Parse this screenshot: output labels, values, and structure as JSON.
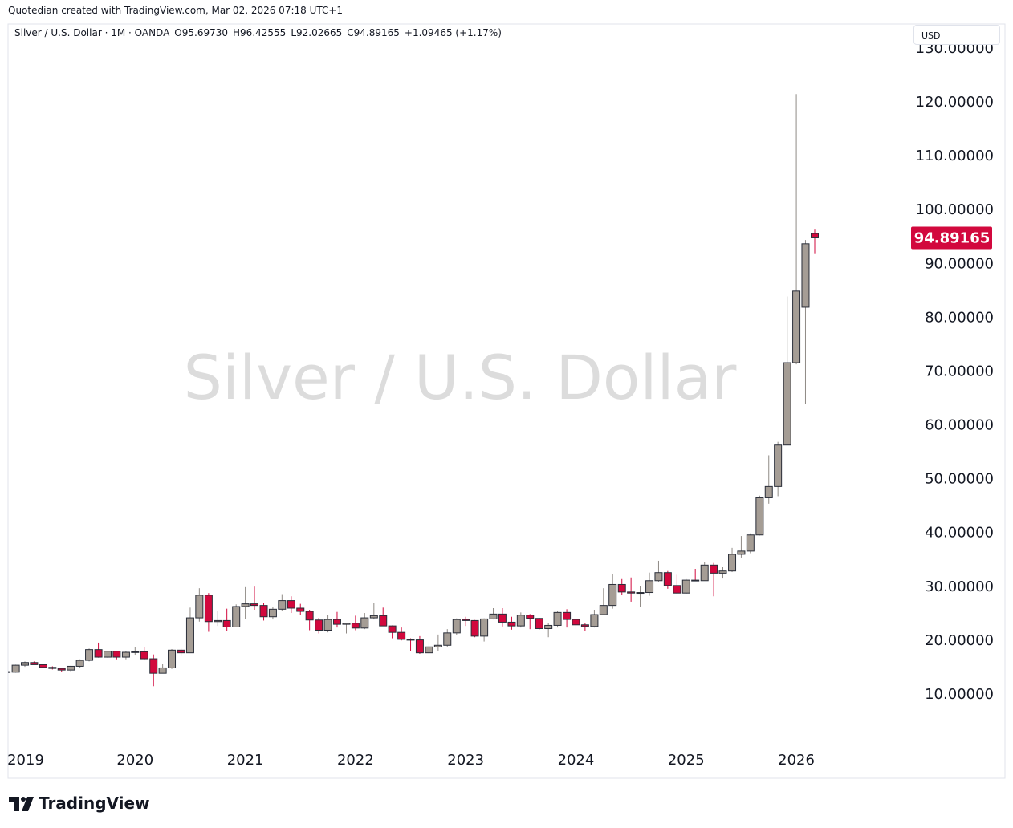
{
  "chart_data": {
    "type": "candlestick",
    "credit": "Quotedian created with TradingView.com, Mar 02, 2026 07:18 UTC+1",
    "legend_title": "Silver / U.S. Dollar · 1M · OANDA",
    "legend": [
      {
        "key": "O",
        "text": "95.69730"
      },
      {
        "key": "H",
        "text": "96.42555"
      },
      {
        "key": "L",
        "text": "92.02665"
      },
      {
        "key": "C",
        "text": "94.89165"
      }
    ],
    "change": "+1.09465 (+1.17%)",
    "watermark": "Silver / U.S. Dollar",
    "currency": "USD",
    "brand": "TradingView",
    "x": [
      2018.833,
      2018.917,
      2019.0,
      2019.083,
      2019.167,
      2019.25,
      2019.333,
      2019.417,
      2019.5,
      2019.583,
      2019.667,
      2019.75,
      2019.833,
      2019.917,
      2020.0,
      2020.083,
      2020.167,
      2020.25,
      2020.333,
      2020.417,
      2020.5,
      2020.583,
      2020.667,
      2020.75,
      2020.833,
      2020.917,
      2021.0,
      2021.083,
      2021.167,
      2021.25,
      2021.333,
      2021.417,
      2021.5,
      2021.583,
      2021.667,
      2021.75,
      2021.833,
      2021.917,
      2022.0,
      2022.083,
      2022.167,
      2022.25,
      2022.333,
      2022.417,
      2022.5,
      2022.583,
      2022.667,
      2022.75,
      2022.833,
      2022.917,
      2023.0,
      2023.083,
      2023.167,
      2023.25,
      2023.333,
      2023.417,
      2023.5,
      2023.583,
      2023.667,
      2023.75,
      2023.833,
      2023.917,
      2024.0,
      2024.083,
      2024.167,
      2024.25,
      2024.333,
      2024.417,
      2024.5,
      2024.583,
      2024.667,
      2024.75,
      2024.833,
      2024.917,
      2025.0,
      2025.083,
      2025.167,
      2025.25,
      2025.333,
      2025.417,
      2025.5,
      2025.583,
      2025.667,
      2025.75,
      2025.833,
      2025.917,
      2026.0,
      2026.083,
      2026.167
    ],
    "open": [
      14.3,
      14.2,
      15.5,
      16.0,
      15.6,
      15.1,
      14.9,
      14.6,
      15.3,
      16.4,
      18.4,
      17.0,
      18.1,
      17.0,
      17.9,
      18.0,
      16.7,
      14.0,
      15.0,
      18.3,
      17.8,
      24.3,
      28.5,
      23.6,
      23.8,
      22.6,
      26.4,
      26.9,
      26.6,
      24.5,
      25.9,
      27.5,
      26.1,
      25.5,
      23.9,
      22.0,
      24.0,
      23.1,
      23.3,
      22.4,
      24.3,
      24.7,
      22.8,
      21.6,
      20.3,
      20.2,
      17.8,
      18.9,
      19.2,
      21.5,
      24.0,
      23.8,
      20.9,
      24.1,
      25.0,
      23.5,
      22.8,
      24.8,
      24.2,
      22.3,
      22.9,
      25.3,
      24.0,
      23.0,
      22.7,
      24.9,
      26.6,
      30.5,
      29.1,
      28.9,
      29.0,
      31.2,
      32.7,
      30.3,
      28.9,
      31.3,
      31.2,
      34.1,
      32.6,
      33.0,
      36.1,
      36.7,
      39.7,
      46.6,
      48.7,
      56.4,
      71.7,
      82.0,
      95.6973
    ],
    "high": [
      14.6,
      15.6,
      16.2,
      16.2,
      15.6,
      15.3,
      15.0,
      15.4,
      16.6,
      18.6,
      19.7,
      18.2,
      18.2,
      18.1,
      18.9,
      18.9,
      17.5,
      15.7,
      18.5,
      18.6,
      26.2,
      29.8,
      28.9,
      25.5,
      26.0,
      26.8,
      30.0,
      30.1,
      27.0,
      26.4,
      28.7,
      28.3,
      26.9,
      25.8,
      24.3,
      24.8,
      25.4,
      23.4,
      24.7,
      25.2,
      27.0,
      26.2,
      22.9,
      22.5,
      20.5,
      20.9,
      19.8,
      21.2,
      22.2,
      24.2,
      24.5,
      23.9,
      24.2,
      26.1,
      26.1,
      24.5,
      25.3,
      25.0,
      24.3,
      23.3,
      25.5,
      25.9,
      24.0,
      23.3,
      25.8,
      29.8,
      32.5,
      31.5,
      31.8,
      30.2,
      32.7,
      34.9,
      33.0,
      32.3,
      31.5,
      33.4,
      34.6,
      34.5,
      33.7,
      37.3,
      39.5,
      40.0,
      47.0,
      54.5,
      57.0,
      84.0,
      121.6,
      94.5,
      96.42555
    ],
    "low": [
      13.9,
      14.1,
      15.2,
      15.6,
      15.0,
      14.7,
      14.3,
      14.3,
      15.0,
      16.2,
      16.9,
      16.9,
      16.6,
      16.6,
      17.3,
      16.4,
      11.6,
      14.0,
      14.8,
      17.2,
      17.8,
      23.6,
      21.7,
      22.8,
      21.9,
      22.6,
      24.1,
      25.8,
      23.8,
      24.0,
      25.6,
      25.2,
      24.8,
      22.0,
      21.4,
      21.6,
      22.5,
      21.4,
      22.0,
      22.2,
      24.0,
      22.8,
      20.5,
      20.1,
      18.1,
      17.6,
      17.6,
      18.1,
      18.8,
      21.1,
      22.8,
      20.7,
      19.9,
      24.0,
      22.7,
      22.1,
      22.5,
      22.2,
      22.1,
      20.7,
      22.5,
      22.5,
      22.2,
      21.9,
      22.5,
      24.8,
      26.0,
      28.6,
      27.3,
      26.4,
      28.4,
      31.0,
      29.7,
      28.8,
      28.8,
      31.1,
      31.2,
      28.3,
      31.6,
      32.8,
      35.5,
      36.3,
      39.6,
      45.5,
      46.9,
      56.4,
      71.4,
      64.1,
      92.02665
    ],
    "close": [
      14.2,
      15.5,
      16.0,
      15.6,
      15.1,
      14.9,
      14.6,
      15.3,
      16.4,
      18.4,
      17.0,
      18.1,
      17.0,
      17.9,
      18.0,
      16.7,
      14.0,
      15.0,
      18.3,
      17.8,
      24.3,
      28.5,
      23.6,
      23.8,
      22.6,
      26.4,
      26.9,
      26.6,
      24.5,
      25.9,
      27.5,
      26.1,
      25.5,
      23.9,
      22.0,
      24.0,
      23.1,
      23.3,
      22.4,
      24.3,
      24.7,
      22.8,
      21.6,
      20.3,
      20.2,
      17.8,
      18.9,
      19.2,
      21.5,
      24.0,
      23.8,
      20.9,
      24.1,
      25.0,
      23.5,
      22.8,
      24.8,
      24.2,
      22.3,
      22.9,
      25.3,
      24.0,
      23.0,
      22.7,
      24.9,
      26.6,
      30.5,
      29.1,
      28.9,
      29.0,
      31.2,
      32.7,
      30.3,
      28.9,
      31.3,
      31.2,
      34.1,
      32.6,
      33.0,
      36.1,
      36.7,
      39.7,
      46.6,
      48.7,
      56.4,
      71.7,
      85.0,
      93.797,
      94.89165
    ],
    "last_price_label": "94.89165",
    "up_color": "#a59d95",
    "down_color": "#d2083d",
    "last_price_color": "#d2083d",
    "xlim": [
      2018.847,
      2027.041
    ],
    "xticks": [
      2019,
      2020,
      2021,
      2022,
      2023,
      2024,
      2025,
      2026
    ],
    "ylim": [
      0.461,
      134.61
    ],
    "yticks": [
      {
        "value": 10,
        "label": "10.00000"
      },
      {
        "value": 20,
        "label": "20.00000"
      },
      {
        "value": 30,
        "label": "30.00000"
      },
      {
        "value": 40,
        "label": "40.00000"
      },
      {
        "value": 50,
        "label": "50.00000"
      },
      {
        "value": 60,
        "label": "60.00000"
      },
      {
        "value": 70,
        "label": "70.00000"
      },
      {
        "value": 80,
        "label": "80.00000"
      },
      {
        "value": 90,
        "label": "90.00000"
      },
      {
        "value": 100,
        "label": "100.00000"
      },
      {
        "value": 110,
        "label": "110.00000"
      },
      {
        "value": 120,
        "label": "120.00000"
      },
      {
        "value": 130,
        "label": "130.00000"
      }
    ],
    "grid": false
  }
}
